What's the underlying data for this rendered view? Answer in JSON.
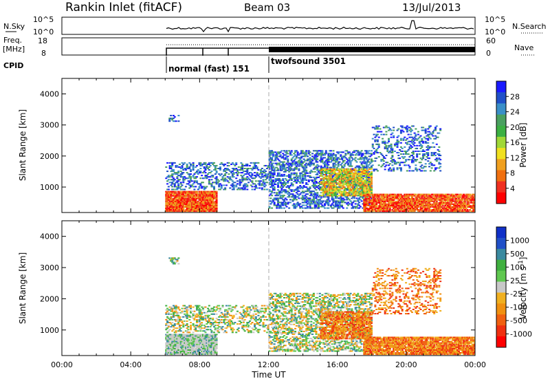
{
  "header": {
    "station": "Rankin Inlet (fitACF)",
    "beam": "Beam 03",
    "date": "13/Jul/2013"
  },
  "top_strip": {
    "left_label": "N.Sky",
    "left_ticks": [
      "10^5",
      "10^0"
    ],
    "right_label": "N.Search",
    "right_ticks": [
      "10^5",
      "10^0"
    ]
  },
  "freq_strip": {
    "left_label_1": "Freq.",
    "left_label_2": "[MHz]",
    "left_ticks": [
      "18",
      "8"
    ],
    "right_label": "Nave",
    "right_ticks": [
      "60",
      "0"
    ]
  },
  "cpid": {
    "label": "CPID",
    "modes": [
      {
        "name": "normal (fast) 151"
      },
      {
        "name": "twofsound 3501"
      }
    ]
  },
  "chart_data": [
    {
      "type": "heatmap",
      "name": "power",
      "ylabel": "Slant Range [km]",
      "xlabel": "",
      "yticks": [
        "1000",
        "2000",
        "3000",
        "4000"
      ],
      "ylim": [
        180,
        4500
      ],
      "colorbar": {
        "label": "Power [dB]",
        "ticks": [
          "4",
          "8",
          "12",
          "16",
          "20",
          "24",
          "28"
        ],
        "colors": [
          "#1a1aff",
          "#2050c8",
          "#3a8fc8",
          "#4aa060",
          "#3cb043",
          "#a0d838",
          "#f0e020",
          "#f0a020",
          "#f07010",
          "#f03020",
          "#ff0000"
        ]
      }
    },
    {
      "type": "heatmap",
      "name": "velocity",
      "ylabel": "Slant Range [km]",
      "xlabel": "Time UT",
      "yticks": [
        "1000",
        "2000",
        "3000",
        "4000"
      ],
      "ylim": [
        180,
        4500
      ],
      "xticks": [
        "00:00",
        "04:00",
        "08:00",
        "12:00",
        "16:00",
        "20:00",
        "00:00"
      ],
      "xrange_hours": [
        0,
        24
      ],
      "colorbar": {
        "label": "Velocity [m s",
        "label_sup": "-1",
        "label_end": "]",
        "ticks": [
          "1000",
          "500",
          "100",
          "25",
          "-25",
          "-100",
          "-500",
          "-1000"
        ],
        "colors": [
          "#1030c8",
          "#2050c8",
          "#3a8aa0",
          "#40b040",
          "#60c850",
          "#c8c8c8",
          "#f0b020",
          "#f09010",
          "#f06010",
          "#f03010",
          "#ff0000"
        ]
      }
    }
  ]
}
